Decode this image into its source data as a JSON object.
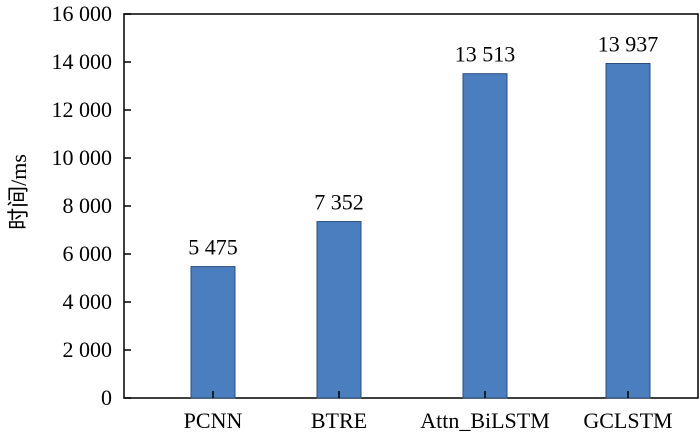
{
  "chart_data": {
    "type": "bar",
    "title": "",
    "xlabel": "",
    "ylabel": "时间/ms",
    "categories": [
      "PCNN",
      "BTRE",
      "Attn_BiLSTM",
      "GCLSTM"
    ],
    "values": [
      5475,
      7352,
      13513,
      13937
    ],
    "value_labels": [
      "5 475",
      "7 352",
      "13 513",
      "13 937"
    ],
    "ylim": [
      0,
      16000
    ],
    "yticks": [
      0,
      2000,
      4000,
      6000,
      8000,
      10000,
      12000,
      14000,
      16000
    ],
    "ytick_labels": [
      "0",
      "2 000",
      "4 000",
      "6 000",
      "8 000",
      "10 000",
      "12 000",
      "14 000",
      "16 000"
    ],
    "grid": false,
    "legend": "none",
    "bar_color": "#4a7ebf",
    "bar_edge_color": "#2b4d7a"
  }
}
